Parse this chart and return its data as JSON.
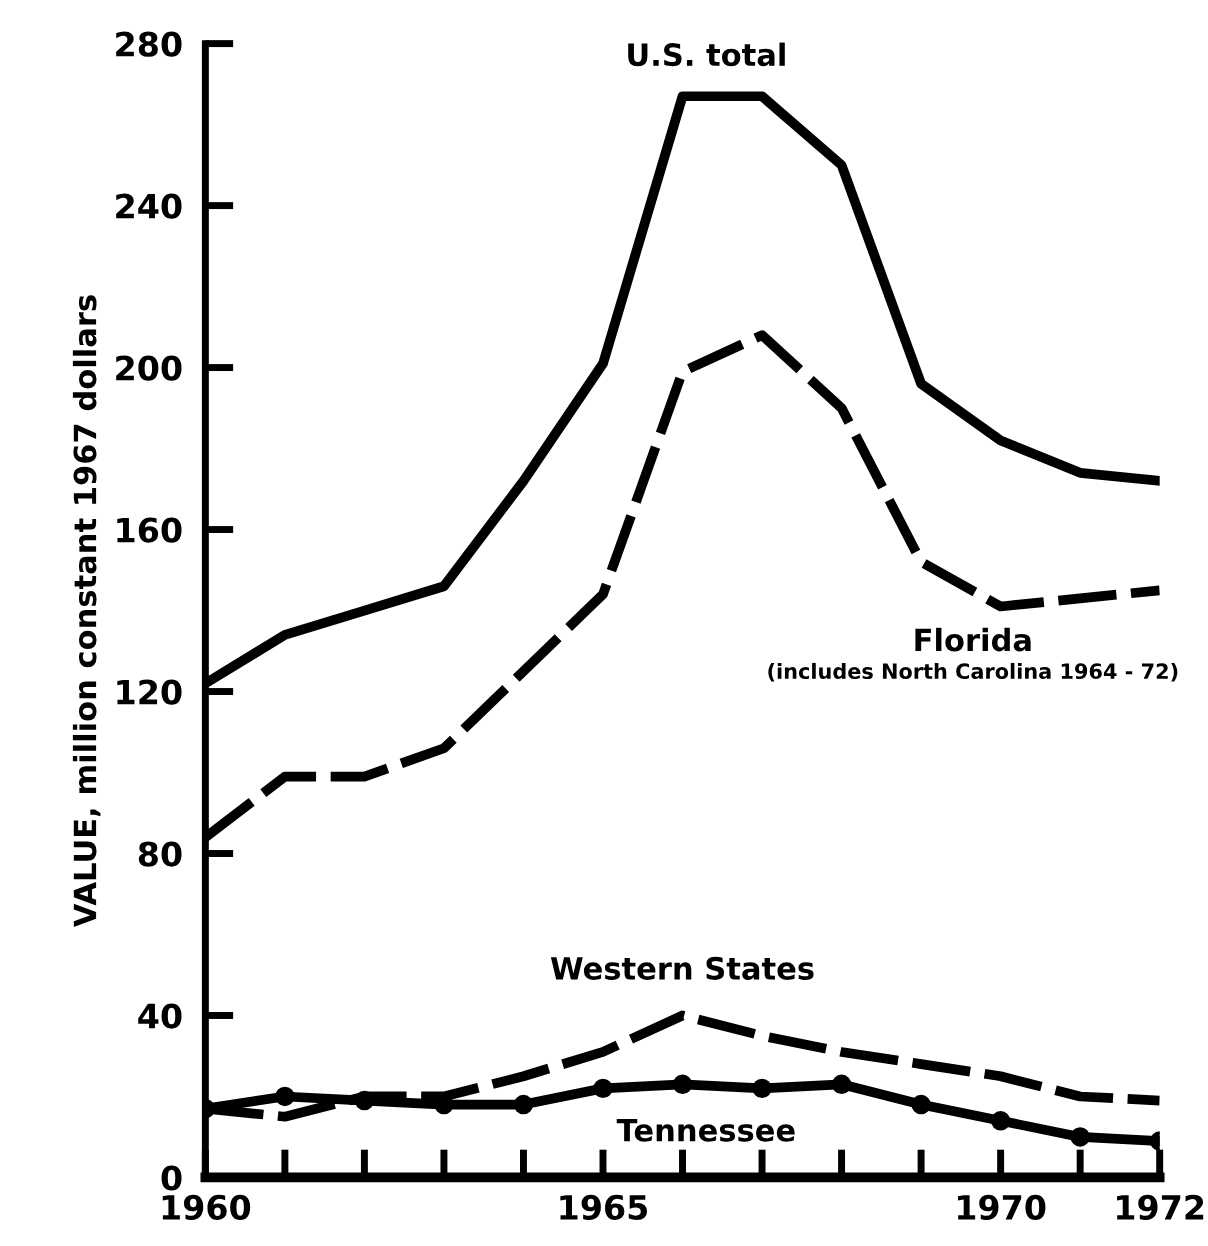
{
  "chart_data": {
    "type": "line",
    "ylabel": "VALUE, million constant 1967 dollars",
    "x": [
      1960,
      1961,
      1962,
      1963,
      1964,
      1965,
      1966,
      1967,
      1968,
      1969,
      1970,
      1971,
      1972
    ],
    "series": [
      {
        "name": "U.S. total",
        "color": "#000000",
        "line_style": "solid",
        "marker": "none",
        "values": [
          122,
          134,
          140,
          146,
          172,
          201,
          267,
          267,
          250,
          196,
          182,
          174,
          172
        ]
      },
      {
        "name": "Florida",
        "color": "#000000",
        "line_style": "dashed",
        "marker": "none",
        "values": [
          84,
          99,
          99,
          106,
          125,
          144,
          199,
          208,
          190,
          152,
          141,
          143,
          145
        ]
      },
      {
        "name": "Western States",
        "color": "#000000",
        "line_style": "dashed",
        "marker": "none",
        "values": [
          17,
          15,
          20,
          20,
          25,
          31,
          40,
          35,
          31,
          28,
          25,
          20,
          19
        ]
      },
      {
        "name": "Tennessee",
        "color": "#000000",
        "line_style": "solid",
        "marker": "circle",
        "values": [
          17,
          20,
          19,
          18,
          18,
          22,
          23,
          22,
          23,
          18,
          14,
          10,
          9
        ]
      }
    ],
    "annotations": [
      "(includes North Carolina 1964 - 72)"
    ],
    "xlim": [
      1960,
      1972
    ],
    "ylim": [
      0,
      280
    ],
    "xticks": [
      1960,
      {
        "value": 1961,
        "label": null
      },
      {
        "value": 1962,
        "label": null
      },
      {
        "value": 1963,
        "label": null
      },
      {
        "value": 1964,
        "label": null
      },
      1965,
      {
        "value": 1966,
        "label": null
      },
      {
        "value": 1967,
        "label": null
      },
      {
        "value": 1968,
        "label": null
      },
      {
        "value": 1969,
        "label": null
      },
      1970,
      {
        "value": 1971,
        "label": null
      },
      1972
    ],
    "yticks": [
      0,
      40,
      80,
      120,
      160,
      200,
      240,
      280
    ],
    "grid": false,
    "legend": false
  }
}
